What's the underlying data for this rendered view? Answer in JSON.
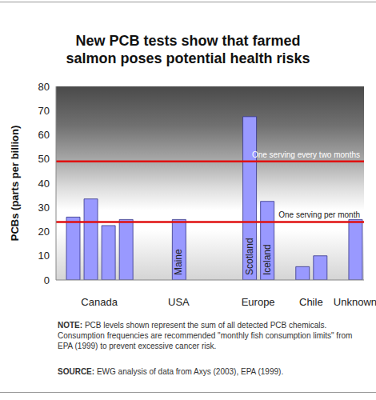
{
  "chart_data": {
    "type": "bar",
    "title": "New PCB tests show that farmed salmon poses potential health risks",
    "ylabel": "PCBs (parts per billion)",
    "groups": [
      {
        "name": "Canada",
        "categories": [
          null,
          null,
          null,
          null
        ],
        "values": [
          26,
          33.5,
          22.5,
          25
        ]
      },
      {
        "name": "USA",
        "categories": [
          "Maine"
        ],
        "values": [
          25
        ]
      },
      {
        "name": "Europe",
        "categories": [
          "Scotland",
          "Iceland"
        ],
        "values": [
          67.5,
          32.5
        ]
      },
      {
        "name": "Chile",
        "categories": [
          null,
          null
        ],
        "values": [
          5.5,
          10
        ]
      },
      {
        "name": "Unknown",
        "categories": [
          null
        ],
        "values": [
          25
        ]
      }
    ],
    "color": "#9999ff",
    "ylim": [
      0,
      80
    ],
    "yticks": [
      0,
      10,
      20,
      30,
      40,
      50,
      60,
      70,
      80
    ],
    "grid": false,
    "reference_lines": [
      {
        "value": 49,
        "label": "One serving every two months"
      },
      {
        "value": 24,
        "label": "One serving per month"
      }
    ],
    "note": {
      "label": "NOTE:",
      "text": "PCB levels shown represent the sum of all detected PCB chemicals. Consumption frequencies are recommended \"monthly fish consumption limits\" from EPA (1999) to prevent excessive cancer risk."
    },
    "source": {
      "label": "SOURCE:",
      "text": "EWG analysis of data from Axys (2003), EPA (1999)."
    }
  }
}
